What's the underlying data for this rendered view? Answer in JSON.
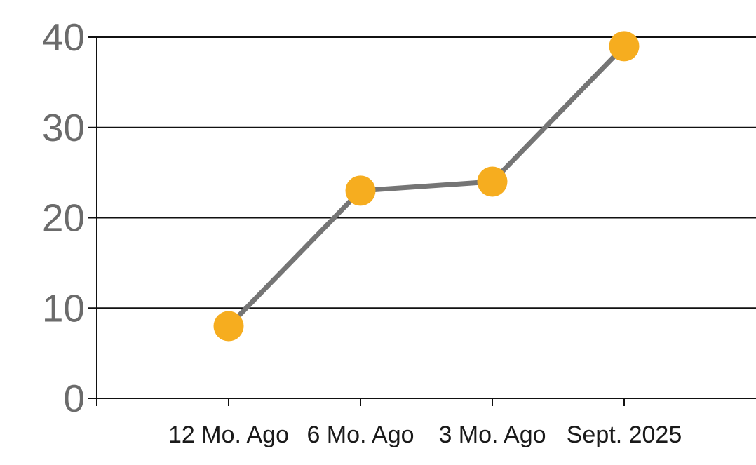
{
  "chart_data": {
    "type": "line",
    "categories": [
      "12 Mo. Ago",
      "6 Mo. Ago",
      "3 Mo. Ago",
      "Sept. 2025"
    ],
    "values": [
      8,
      23,
      24,
      39
    ],
    "series": [
      {
        "name": "series-1",
        "values": [
          8,
          23,
          24,
          39
        ]
      }
    ],
    "title": "",
    "xlabel": "",
    "ylabel": "",
    "ylim": [
      0,
      40
    ],
    "yticks": [
      0,
      10,
      20,
      30,
      40
    ],
    "grid": "horizontal",
    "legend": "none",
    "colors": {
      "marker": "#F6AD1F",
      "line": "#757575",
      "axis": "#111111",
      "gridline": "#111111",
      "ytick_label": "#6B6B6B",
      "xtick_label": "#1A1A1A",
      "background": "#FFFFFF"
    },
    "style": {
      "marker_radius": 21.5,
      "line_width": 7,
      "gridline_width": 2,
      "ytick_font_size": 55,
      "xtick_font_size": 34
    }
  }
}
